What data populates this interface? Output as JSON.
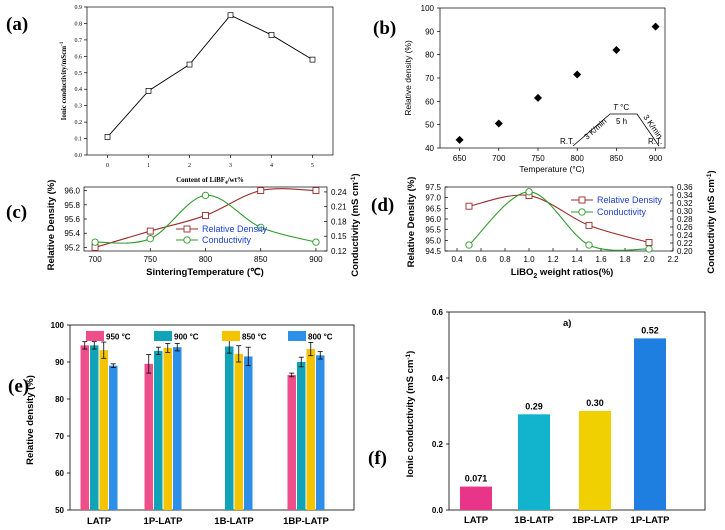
{
  "colors": {
    "density_line": "#9b2b2b",
    "conductivity_line": "#2e9a2e",
    "bar_950": "#ee4f8a",
    "bar_900": "#11a4b8",
    "bar_850": "#f5c400",
    "bar_800": "#2d8fe8",
    "bar_latp_f": "#e8358a",
    "bar_1b_f": "#12b3cc",
    "bar_1bp_f": "#f0d000",
    "bar_1p_f": "#1f7fe0"
  },
  "chart_data": [
    {
      "panel": "(a)",
      "type": "line",
      "xlabel": "Content of LiBF",
      "xlabel_sub": "4",
      "xlabel_suffix": "/wt%",
      "ylabel": "Ionic conductivity/mScm",
      "ylabel_sup": "-1",
      "x": [
        0,
        1,
        2,
        3,
        4,
        5
      ],
      "y": [
        0.11,
        0.39,
        0.55,
        0.85,
        0.73,
        0.58
      ],
      "xlim": [
        -0.5,
        5.5
      ],
      "ylim": [
        0,
        0.9
      ],
      "xticks": [
        "0",
        "1",
        "2",
        "3",
        "4",
        "5"
      ],
      "yticks": [
        "0.0",
        "0.1",
        "0.2",
        "0.3",
        "0.4",
        "0.5",
        "0.6",
        "0.7",
        "0.8",
        "0.9"
      ]
    },
    {
      "panel": "(b)",
      "type": "scatter",
      "xlabel": "Temperature (°C)",
      "ylabel": "Relative density (%)",
      "x": [
        650,
        700,
        750,
        800,
        850,
        900
      ],
      "y": [
        43.5,
        50.5,
        61.5,
        71.5,
        82,
        92
      ],
      "xlim": [
        625,
        912
      ],
      "ylim": [
        40,
        100
      ],
      "xticks": [
        "650",
        "700",
        "750",
        "800",
        "850",
        "900"
      ],
      "yticks": [
        "40",
        "50",
        "60",
        "70",
        "80",
        "90",
        "100"
      ],
      "inset": {
        "start": "R.T.",
        "end": "R.T.",
        "temp_italic": "T",
        "temp_unit": " °C",
        "hold": "5 h",
        "ramp_up": "3 K/min",
        "ramp_down": "3 K/min"
      }
    },
    {
      "panel": "(c)",
      "type": "line",
      "xlabel": "SinteringTemperature (℃)",
      "ylabel": "Relative Density (%)",
      "ylabel_right": "Conductivity (mS cm",
      "ylabel_right_sup": "-1",
      "ylabel_right_suffix": ")",
      "xlim": [
        690,
        910
      ],
      "ylim": [
        95.15,
        96.05
      ],
      "ylim_right": [
        0.12,
        0.25
      ],
      "xticks": [
        "700",
        "750",
        "800",
        "850",
        "900"
      ],
      "yticks": [
        "95.2",
        "95.4",
        "95.6",
        "95.8",
        "96.0"
      ],
      "yticks_right": [
        "0.12",
        "0.15",
        "0.18",
        "0.21",
        "0.24"
      ],
      "series": [
        {
          "name": "Relative Density",
          "axis": "left",
          "x": [
            700,
            750,
            800,
            850,
            900
          ],
          "values": [
            95.2,
            95.43,
            95.65,
            96.0,
            96.0
          ]
        },
        {
          "name": "Conductivity",
          "axis": "right",
          "x": [
            700,
            750,
            800,
            850,
            900
          ],
          "values": [
            0.138,
            0.145,
            0.233,
            0.168,
            0.138
          ]
        }
      ]
    },
    {
      "panel": "(d)",
      "type": "line",
      "xlabel": "LiBO",
      "xlabel_sub": "2",
      "xlabel_suffix": " weight ratios(%)",
      "ylabel": "Relative Density (%)",
      "ylabel_right": "Conductivity (mS cm",
      "ylabel_right_sup": "-1",
      "ylabel_right_suffix": ")",
      "xlim": [
        0.3,
        2.2
      ],
      "ylim": [
        94.5,
        97.5
      ],
      "ylim_right": [
        0.2,
        0.36
      ],
      "xticks": [
        "0.4",
        "0.6",
        "0.8",
        "1.0",
        "1.2",
        "1.4",
        "1.6",
        "1.8",
        "2.0",
        "2.2"
      ],
      "yticks": [
        "94.5",
        "95.0",
        "95.5",
        "96.0",
        "96.5",
        "97.0",
        "97.5"
      ],
      "yticks_right": [
        "0.20",
        "0.22",
        "0.24",
        "0.26",
        "0.28",
        "0.30",
        "0.32",
        "0.34",
        "0.36"
      ],
      "series": [
        {
          "name": "Relative Density",
          "axis": "left",
          "x": [
            0.5,
            1.0,
            1.5,
            2.0
          ],
          "values": [
            96.6,
            97.1,
            95.7,
            94.9
          ]
        },
        {
          "name": "Conductivity",
          "axis": "right",
          "x": [
            0.5,
            1.0,
            1.5,
            2.0
          ],
          "values": [
            0.215,
            0.348,
            0.215,
            0.205
          ]
        }
      ]
    },
    {
      "panel": "(e)",
      "type": "bar",
      "ylabel": "Relative density (%)",
      "ylim": [
        50,
        100
      ],
      "yticks": [
        "50",
        "60",
        "70",
        "80",
        "90",
        "100"
      ],
      "categories": [
        "LATP",
        "1P-LATP",
        "1B-LATP",
        "1BP-LATP"
      ],
      "series": [
        {
          "name": "950 °C",
          "values": [
            94.5,
            89.5,
            null,
            86.5
          ],
          "errors": [
            1.0,
            2.5,
            null,
            0.5
          ]
        },
        {
          "name": "900 °C",
          "values": [
            94.5,
            93.0,
            94.2,
            90.0
          ],
          "errors": [
            1.0,
            1.0,
            1.8,
            1.3
          ]
        },
        {
          "name": "850 °C",
          "values": [
            93.2,
            93.8,
            92.2,
            93.5
          ],
          "errors": [
            2.2,
            1.2,
            2.2,
            1.8
          ]
        },
        {
          "name": "800 °C",
          "values": [
            89.0,
            94.0,
            91.5,
            91.8
          ],
          "errors": [
            0.5,
            1.0,
            2.5,
            1.0
          ]
        }
      ]
    },
    {
      "panel": "(f)",
      "type": "bar",
      "corner_label": "a)",
      "ylabel": "Ionic conductivity (mS cm",
      "ylabel_sup": "-1",
      "ylabel_suffix": ")",
      "ylim": [
        0,
        0.6
      ],
      "yticks": [
        "0.0",
        "0.2",
        "0.4",
        "0.6"
      ],
      "categories": [
        "LATP",
        "1B-LATP",
        "1BP-LATP",
        "1P-LATP"
      ],
      "values": [
        0.071,
        0.29,
        0.3,
        0.52
      ],
      "value_labels": [
        "0.071",
        "0.29",
        "0.30",
        "0.52"
      ]
    }
  ]
}
